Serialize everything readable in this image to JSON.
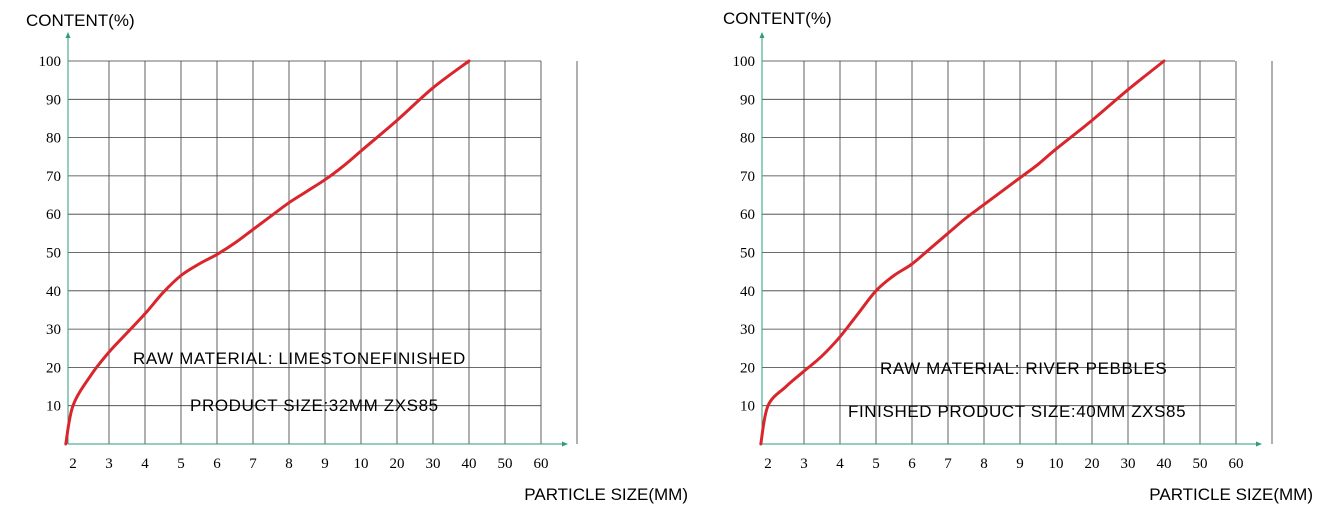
{
  "chart_data": [
    {
      "type": "line",
      "title": "",
      "ylabel": "CONTENT(%)",
      "xlabel": "PARTICLE SIZE(MM)",
      "x_ticks": [
        "2",
        "3",
        "4",
        "5",
        "6",
        "7",
        "8",
        "9",
        "10",
        "20",
        "30",
        "40",
        "50",
        "60"
      ],
      "y_ticks": [
        "10",
        "20",
        "30",
        "40",
        "50",
        "60",
        "70",
        "80",
        "90",
        "100"
      ],
      "ylim": [
        0,
        100
      ],
      "grid": true,
      "annotations": [
        "RAW MATERIAL: LIMESTONEFINISHED",
        "PRODUCT SIZE:32MM ZXS85"
      ],
      "series": [
        {
          "color": "#d9262c",
          "x": [
            "1.8",
            "2",
            "2.5",
            "3",
            "3.5",
            "4",
            "4.5",
            "5",
            "5.5",
            "6",
            "6.5",
            "7",
            "7.5",
            "8",
            "8.5",
            "9",
            "9.5",
            "10",
            "20",
            "30",
            "40"
          ],
          "values": [
            0,
            10,
            18,
            24,
            29,
            34,
            39.5,
            44,
            47,
            49.5,
            52.5,
            56,
            59.5,
            63,
            66,
            69,
            72.5,
            76.5,
            84.5,
            93,
            100
          ]
        }
      ]
    },
    {
      "type": "line",
      "title": "",
      "ylabel": "CONTENT(%)",
      "xlabel": "PARTICLE SIZE(MM)",
      "x_ticks": [
        "2",
        "3",
        "4",
        "5",
        "6",
        "7",
        "8",
        "9",
        "10",
        "20",
        "30",
        "40",
        "50",
        "60"
      ],
      "y_ticks": [
        "10",
        "20",
        "30",
        "40",
        "50",
        "60",
        "70",
        "80",
        "90",
        "100"
      ],
      "ylim": [
        0,
        100
      ],
      "grid": true,
      "annotations": [
        "RAW MATERIAL: RIVER PEBBLES",
        "FINISHED PRODUCT SIZE:40MM ZXS85"
      ],
      "series": [
        {
          "color": "#d9262c",
          "x": [
            "1.8",
            "2",
            "2.5",
            "3",
            "3.5",
            "4",
            "4.5",
            "5",
            "5.5",
            "6",
            "6.5",
            "7",
            "7.5",
            "8",
            "8.5",
            "9",
            "9.5",
            "10",
            "20",
            "30",
            "40"
          ],
          "values": [
            0,
            10,
            15,
            19,
            23,
            28,
            34,
            40,
            44,
            47,
            51,
            55,
            59,
            62.5,
            66,
            69.5,
            73,
            77,
            84.5,
            92.5,
            100
          ]
        }
      ]
    }
  ]
}
